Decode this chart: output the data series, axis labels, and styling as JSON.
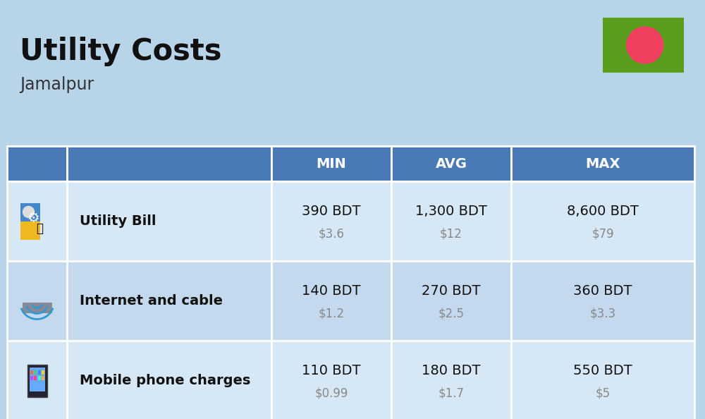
{
  "title": "Utility Costs",
  "subtitle": "Jamalpur",
  "bg_color": "#b8d4e8",
  "header_bg": "#4a7ab5",
  "header_text_color": "#ffffff",
  "row_bg_even": "#d6e8f5",
  "row_bg_odd": "#c4d9ee",
  "table_border_color": "#ffffff",
  "columns": [
    "MIN",
    "AVG",
    "MAX"
  ],
  "rows": [
    {
      "label": "Utility Bill",
      "min_bdt": "390 BDT",
      "min_usd": "$3.6",
      "avg_bdt": "1,300 BDT",
      "avg_usd": "$12",
      "max_bdt": "8,600 BDT",
      "max_usd": "$79"
    },
    {
      "label": "Internet and cable",
      "min_bdt": "140 BDT",
      "min_usd": "$1.2",
      "avg_bdt": "270 BDT",
      "avg_usd": "$2.5",
      "max_bdt": "360 BDT",
      "max_usd": "$3.3"
    },
    {
      "label": "Mobile phone charges",
      "min_bdt": "110 BDT",
      "min_usd": "$0.99",
      "avg_bdt": "180 BDT",
      "avg_usd": "$1.7",
      "max_bdt": "550 BDT",
      "max_usd": "$5"
    }
  ],
  "flag_green": "#5a9e1e",
  "flag_red": "#f04060",
  "title_fontsize": 30,
  "subtitle_fontsize": 17,
  "header_fontsize": 14,
  "label_fontsize": 14,
  "value_fontsize": 14,
  "usd_fontsize": 12,
  "icon_fontsize": 28,
  "fig_width": 10.0,
  "fig_height": 5.94,
  "dpi": 100
}
